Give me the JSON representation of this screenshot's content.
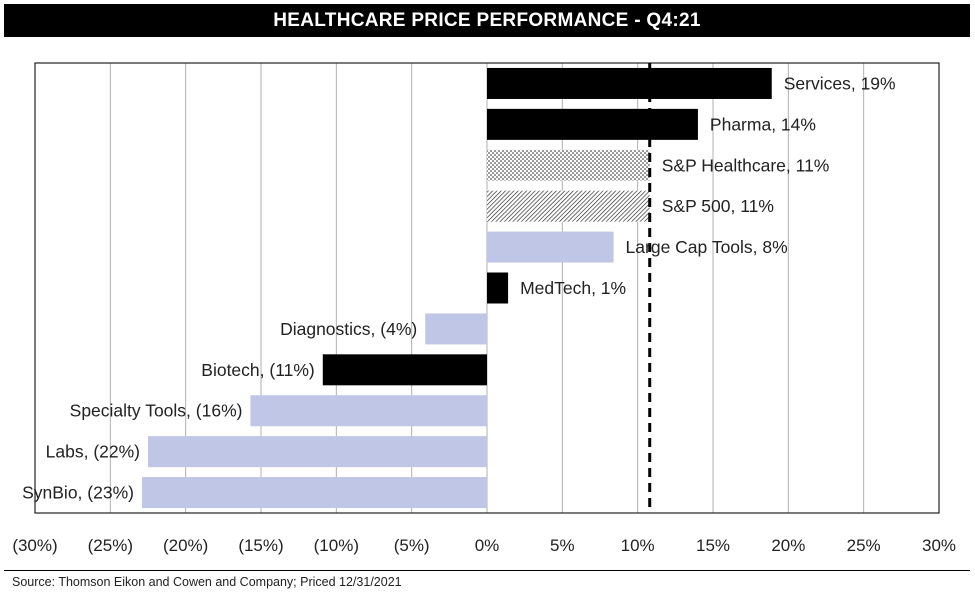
{
  "chart_data": {
    "type": "bar",
    "orientation": "horizontal",
    "title": "HEALTHCARE PRICE PERFORMANCE - Q4:21",
    "categories": [
      "Services",
      "Pharma",
      "S&P Healthcare",
      "S&P 500",
      "Large Cap Tools",
      "MedTech",
      "Diagnostics",
      "Biotech",
      "Specialty Tools",
      "Labs",
      "SynBio"
    ],
    "values": [
      19,
      14,
      11,
      11,
      8,
      1,
      -4,
      -11,
      -16,
      -22,
      -23
    ],
    "bar_values": [
      18.9,
      14.0,
      10.8,
      10.8,
      8.4,
      1.4,
      -4.1,
      -10.9,
      -15.7,
      -22.5,
      -22.9
    ],
    "labels": [
      "Services, 19%",
      "Pharma, 14%",
      "S&P Healthcare, 11%",
      "S&P 500, 11%",
      "Large Cap Tools, 8%",
      "MedTech, 1%",
      "Diagnostics, (4%)",
      "Biotech, (11%)",
      "Specialty Tools, (16%)",
      "Labs, (22%)",
      "SynBio, (23%)"
    ],
    "fills": [
      "black",
      "black",
      "dots",
      "hatch",
      "lavender",
      "black",
      "lavender",
      "black",
      "lavender",
      "lavender",
      "lavender"
    ],
    "xlim": [
      -30,
      30
    ],
    "xticks": [
      "(30%)",
      "(25%)",
      "(20%)",
      "(15%)",
      "(10%)",
      "(5%)",
      "0%",
      "5%",
      "10%",
      "15%",
      "20%",
      "25%",
      "30%"
    ],
    "reference_line": 10.8,
    "grid": "vertical",
    "colors": {
      "black": "#000000",
      "lavender": "#bfc6e6",
      "gridline": "#b0b0b0"
    }
  },
  "source": "Source: Thomson Eikon and Cowen and Company; Priced 12/31/2021"
}
